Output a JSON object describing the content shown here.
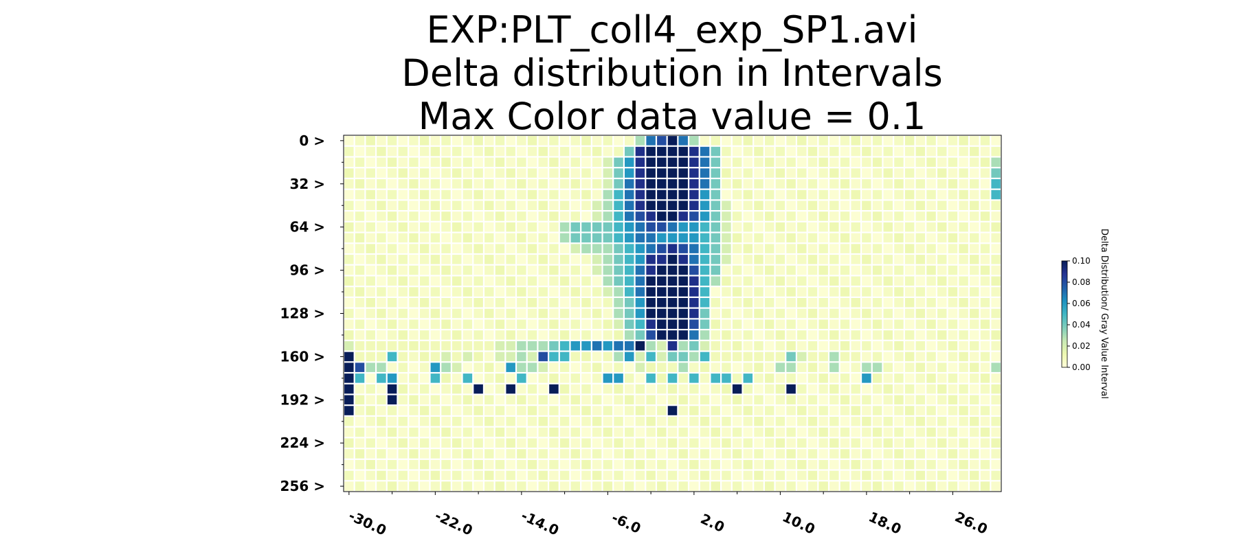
{
  "chart_data": {
    "type": "heatmap",
    "title_lines": [
      "EXP:PLT_coll4_exp_SP1.avi",
      "Delta distribution in Intervals",
      " Max Color data value = 0.1"
    ],
    "x_tick_labels": [
      "-30.0",
      "-22.0",
      "-14.0",
      "-6.0",
      "2.0",
      "10.0",
      "18.0",
      "26.0"
    ],
    "y_tick_labels": [
      "0 >",
      "32 >",
      "64 >",
      "96 >",
      "128 >",
      "160 >",
      "192 >",
      "224 >",
      "256 >"
    ],
    "x_range": [
      -30,
      30
    ],
    "y_range": [
      0,
      256
    ],
    "grid": false,
    "legend_position": "right",
    "colorbar": {
      "label": "Delta Distribution/ Gray Value Interval",
      "range": [
        0,
        0.1
      ],
      "tick_labels": [
        "0.00",
        "0.02",
        "0.04",
        "0.06",
        "0.08",
        "0.10"
      ],
      "colormap": [
        "#ffffd9",
        "#edf8b1",
        "#c7e9b4",
        "#7fcdbb",
        "#41b6c4",
        "#1d91c0",
        "#225ea8",
        "#253494",
        "#081d58"
      ]
    },
    "cells": [
      [
        -3,
        0,
        0.03
      ],
      [
        -2,
        0,
        0.07
      ],
      [
        -1,
        0,
        0.08
      ],
      [
        0,
        0,
        0.1
      ],
      [
        1,
        0,
        0.07
      ],
      [
        2,
        0,
        0.03
      ],
      [
        -4,
        1,
        0.04
      ],
      [
        -3,
        1,
        0.09
      ],
      [
        -2,
        1,
        0.1
      ],
      [
        -1,
        1,
        0.1
      ],
      [
        0,
        1,
        0.1
      ],
      [
        1,
        1,
        0.1
      ],
      [
        2,
        1,
        0.09
      ],
      [
        3,
        1,
        0.07
      ],
      [
        4,
        1,
        0.04
      ],
      [
        -6,
        2,
        0.02
      ],
      [
        -5,
        2,
        0.04
      ],
      [
        -4,
        2,
        0.06
      ],
      [
        -3,
        2,
        0.09
      ],
      [
        -2,
        2,
        0.1
      ],
      [
        -1,
        2,
        0.1
      ],
      [
        0,
        2,
        0.1
      ],
      [
        1,
        2,
        0.1
      ],
      [
        2,
        2,
        0.09
      ],
      [
        3,
        2,
        0.07
      ],
      [
        4,
        2,
        0.04
      ],
      [
        30,
        2,
        0.03
      ],
      [
        30,
        3,
        0.04
      ],
      [
        30,
        4,
        0.05
      ],
      [
        30,
        5,
        0.05
      ],
      [
        -6,
        3,
        0.02
      ],
      [
        -5,
        3,
        0.04
      ],
      [
        -4,
        3,
        0.06
      ],
      [
        -3,
        3,
        0.09
      ],
      [
        -2,
        3,
        0.1
      ],
      [
        -1,
        3,
        0.1
      ],
      [
        0,
        3,
        0.1
      ],
      [
        1,
        3,
        0.1
      ],
      [
        2,
        3,
        0.09
      ],
      [
        3,
        3,
        0.07
      ],
      [
        4,
        3,
        0.04
      ],
      [
        -6,
        4,
        0.02
      ],
      [
        -5,
        4,
        0.04
      ],
      [
        -4,
        4,
        0.07
      ],
      [
        -3,
        4,
        0.09
      ],
      [
        -2,
        4,
        0.1
      ],
      [
        -1,
        4,
        0.1
      ],
      [
        0,
        4,
        0.1
      ],
      [
        1,
        4,
        0.1
      ],
      [
        2,
        4,
        0.09
      ],
      [
        3,
        4,
        0.07
      ],
      [
        4,
        4,
        0.04
      ],
      [
        -6,
        5,
        0.03
      ],
      [
        -5,
        5,
        0.05
      ],
      [
        -4,
        5,
        0.07
      ],
      [
        -3,
        5,
        0.09
      ],
      [
        -2,
        5,
        0.1
      ],
      [
        -1,
        5,
        0.1
      ],
      [
        0,
        5,
        0.1
      ],
      [
        1,
        5,
        0.1
      ],
      [
        2,
        5,
        0.09
      ],
      [
        3,
        5,
        0.06
      ],
      [
        4,
        5,
        0.04
      ],
      [
        -7,
        6,
        0.02
      ],
      [
        -6,
        6,
        0.03
      ],
      [
        -5,
        6,
        0.05
      ],
      [
        -4,
        6,
        0.07
      ],
      [
        -3,
        6,
        0.09
      ],
      [
        -2,
        6,
        0.1
      ],
      [
        -1,
        6,
        0.1
      ],
      [
        0,
        6,
        0.1
      ],
      [
        1,
        6,
        0.1
      ],
      [
        2,
        6,
        0.09
      ],
      [
        3,
        6,
        0.06
      ],
      [
        4,
        6,
        0.04
      ],
      [
        5,
        6,
        0.02
      ],
      [
        -7,
        7,
        0.02
      ],
      [
        -6,
        7,
        0.03
      ],
      [
        -5,
        7,
        0.05
      ],
      [
        -4,
        7,
        0.07
      ],
      [
        -3,
        7,
        0.08
      ],
      [
        -2,
        7,
        0.09
      ],
      [
        -1,
        7,
        0.1
      ],
      [
        0,
        7,
        0.1
      ],
      [
        1,
        7,
        0.09
      ],
      [
        2,
        7,
        0.08
      ],
      [
        3,
        7,
        0.06
      ],
      [
        4,
        7,
        0.04
      ],
      [
        5,
        7,
        0.02
      ],
      [
        -10,
        8,
        0.03
      ],
      [
        -9,
        8,
        0.04
      ],
      [
        -8,
        8,
        0.04
      ],
      [
        -7,
        8,
        0.04
      ],
      [
        -6,
        8,
        0.04
      ],
      [
        -5,
        8,
        0.05
      ],
      [
        -4,
        8,
        0.06
      ],
      [
        -3,
        8,
        0.07
      ],
      [
        -2,
        8,
        0.08
      ],
      [
        -1,
        8,
        0.08
      ],
      [
        0,
        8,
        0.07
      ],
      [
        1,
        8,
        0.06
      ],
      [
        2,
        8,
        0.06
      ],
      [
        3,
        8,
        0.05
      ],
      [
        4,
        8,
        0.04
      ],
      [
        5,
        8,
        0.02
      ],
      [
        -10,
        9,
        0.03
      ],
      [
        -9,
        9,
        0.04
      ],
      [
        -8,
        9,
        0.04
      ],
      [
        -7,
        9,
        0.04
      ],
      [
        -6,
        9,
        0.04
      ],
      [
        -5,
        9,
        0.05
      ],
      [
        -4,
        9,
        0.06
      ],
      [
        -3,
        9,
        0.07
      ],
      [
        -2,
        9,
        0.07
      ],
      [
        -1,
        9,
        0.06
      ],
      [
        0,
        9,
        0.06
      ],
      [
        1,
        9,
        0.06
      ],
      [
        2,
        9,
        0.06
      ],
      [
        3,
        9,
        0.05
      ],
      [
        4,
        9,
        0.04
      ],
      [
        5,
        9,
        0.02
      ],
      [
        -9,
        10,
        0.02
      ],
      [
        -8,
        10,
        0.03
      ],
      [
        -7,
        10,
        0.03
      ],
      [
        -6,
        10,
        0.03
      ],
      [
        -5,
        10,
        0.04
      ],
      [
        -4,
        10,
        0.05
      ],
      [
        -3,
        10,
        0.06
      ],
      [
        -2,
        10,
        0.07
      ],
      [
        -1,
        10,
        0.08
      ],
      [
        0,
        10,
        0.09
      ],
      [
        1,
        10,
        0.08
      ],
      [
        2,
        10,
        0.07
      ],
      [
        3,
        10,
        0.05
      ],
      [
        4,
        10,
        0.04
      ],
      [
        5,
        10,
        0.02
      ],
      [
        -7,
        11,
        0.02
      ],
      [
        -6,
        11,
        0.03
      ],
      [
        -5,
        11,
        0.04
      ],
      [
        -4,
        11,
        0.05
      ],
      [
        -3,
        11,
        0.06
      ],
      [
        -2,
        11,
        0.09
      ],
      [
        -1,
        11,
        0.09
      ],
      [
        0,
        11,
        0.1
      ],
      [
        1,
        11,
        0.09
      ],
      [
        2,
        11,
        0.07
      ],
      [
        3,
        11,
        0.05
      ],
      [
        4,
        11,
        0.04
      ],
      [
        5,
        11,
        0.02
      ],
      [
        -7,
        12,
        0.02
      ],
      [
        -6,
        12,
        0.03
      ],
      [
        -5,
        12,
        0.04
      ],
      [
        -4,
        12,
        0.05
      ],
      [
        -3,
        12,
        0.07
      ],
      [
        -2,
        12,
        0.09
      ],
      [
        -1,
        12,
        0.1
      ],
      [
        0,
        12,
        0.1
      ],
      [
        1,
        12,
        0.1
      ],
      [
        2,
        12,
        0.08
      ],
      [
        3,
        12,
        0.05
      ],
      [
        4,
        12,
        0.04
      ],
      [
        -6,
        13,
        0.03
      ],
      [
        -5,
        13,
        0.04
      ],
      [
        -4,
        13,
        0.05
      ],
      [
        -3,
        13,
        0.07
      ],
      [
        -2,
        13,
        0.1
      ],
      [
        -1,
        13,
        0.1
      ],
      [
        0,
        13,
        0.1
      ],
      [
        1,
        13,
        0.1
      ],
      [
        2,
        13,
        0.09
      ],
      [
        3,
        13,
        0.05
      ],
      [
        4,
        13,
        0.03
      ],
      [
        -6,
        14,
        0.02
      ],
      [
        -5,
        14,
        0.03
      ],
      [
        -4,
        14,
        0.05
      ],
      [
        -3,
        14,
        0.07
      ],
      [
        -2,
        14,
        0.1
      ],
      [
        -1,
        14,
        0.1
      ],
      [
        0,
        14,
        0.1
      ],
      [
        1,
        14,
        0.1
      ],
      [
        2,
        14,
        0.09
      ],
      [
        3,
        14,
        0.05
      ],
      [
        -5,
        15,
        0.03
      ],
      [
        -4,
        15,
        0.04
      ],
      [
        -3,
        15,
        0.06
      ],
      [
        -2,
        15,
        0.1
      ],
      [
        -1,
        15,
        0.1
      ],
      [
        0,
        15,
        0.1
      ],
      [
        1,
        15,
        0.1
      ],
      [
        2,
        15,
        0.09
      ],
      [
        3,
        15,
        0.05
      ],
      [
        -5,
        16,
        0.03
      ],
      [
        -4,
        16,
        0.04
      ],
      [
        -3,
        16,
        0.06
      ],
      [
        -2,
        16,
        0.1
      ],
      [
        -1,
        16,
        0.1
      ],
      [
        0,
        16,
        0.1
      ],
      [
        1,
        16,
        0.1
      ],
      [
        2,
        16,
        0.09
      ],
      [
        3,
        16,
        0.04
      ],
      [
        -5,
        17,
        0.02
      ],
      [
        -4,
        17,
        0.04
      ],
      [
        -3,
        17,
        0.05
      ],
      [
        -2,
        17,
        0.09
      ],
      [
        -1,
        17,
        0.1
      ],
      [
        0,
        17,
        0.1
      ],
      [
        1,
        17,
        0.1
      ],
      [
        2,
        17,
        0.08
      ],
      [
        3,
        17,
        0.04
      ],
      [
        -4,
        18,
        0.03
      ],
      [
        -3,
        18,
        0.04
      ],
      [
        -2,
        18,
        0.08
      ],
      [
        -1,
        18,
        0.1
      ],
      [
        0,
        18,
        0.1
      ],
      [
        1,
        18,
        0.1
      ],
      [
        2,
        18,
        0.07
      ],
      [
        3,
        18,
        0.03
      ],
      [
        -30,
        19,
        0.02
      ],
      [
        -29,
        19,
        0.01
      ],
      [
        -28,
        19,
        0.01
      ],
      [
        -27,
        19,
        0.01
      ],
      [
        -26,
        19,
        0.01
      ],
      [
        -25,
        19,
        0.01
      ],
      [
        -23,
        19,
        0.01
      ],
      [
        -22,
        19,
        0.01
      ],
      [
        -21,
        19,
        0.01
      ],
      [
        -20,
        19,
        0.01
      ],
      [
        -19,
        19,
        0.01
      ],
      [
        -18,
        19,
        0.01
      ],
      [
        -17,
        19,
        0.01
      ],
      [
        -16,
        19,
        0.02
      ],
      [
        -15,
        19,
        0.01
      ],
      [
        -14,
        19,
        0.01
      ],
      [
        -13,
        19,
        0.01
      ],
      [
        -16,
        19,
        0.02
      ],
      [
        -15,
        19,
        0.02
      ],
      [
        -14,
        19,
        0.03
      ],
      [
        -13,
        19,
        0.03
      ],
      [
        -12,
        19,
        0.03
      ],
      [
        -11,
        19,
        0.04
      ],
      [
        -10,
        19,
        0.05
      ],
      [
        -9,
        19,
        0.06
      ],
      [
        -8,
        19,
        0.06
      ],
      [
        -7,
        19,
        0.07
      ],
      [
        -6,
        19,
        0.06
      ],
      [
        -5,
        19,
        0.07
      ],
      [
        -4,
        19,
        0.07
      ],
      [
        -3,
        19,
        0.1
      ],
      [
        -2,
        19,
        0.03
      ],
      [
        -1,
        19,
        0.02
      ],
      [
        0,
        19,
        0.09
      ],
      [
        1,
        19,
        0.03
      ],
      [
        2,
        19,
        0.04
      ],
      [
        3,
        19,
        0.02
      ],
      [
        4,
        19,
        0.01
      ],
      [
        -30,
        20,
        0.1
      ],
      [
        -29,
        20,
        0.01
      ],
      [
        -28,
        20,
        0.01
      ],
      [
        -27,
        20,
        0.01
      ],
      [
        -26,
        20,
        0.05
      ],
      [
        -25,
        20,
        0.01
      ],
      [
        -22,
        20,
        0.01
      ],
      [
        -21,
        20,
        0.02
      ],
      [
        -20,
        20,
        0.01
      ],
      [
        -19,
        20,
        0.02
      ],
      [
        -16,
        20,
        0.02
      ],
      [
        -15,
        20,
        0.02
      ],
      [
        -14,
        20,
        0.03
      ],
      [
        -13,
        20,
        0.02
      ],
      [
        -12,
        20,
        0.08
      ],
      [
        -11,
        20,
        0.05
      ],
      [
        -10,
        20,
        0.05
      ],
      [
        -9,
        20,
        0.01
      ],
      [
        -6,
        20,
        0.01
      ],
      [
        -5,
        20,
        0.03
      ],
      [
        -4,
        20,
        0.06
      ],
      [
        -3,
        20,
        0.02
      ],
      [
        -2,
        20,
        0.05
      ],
      [
        -1,
        20,
        0.02
      ],
      [
        0,
        20,
        0.04
      ],
      [
        1,
        20,
        0.04
      ],
      [
        2,
        20,
        0.03
      ],
      [
        3,
        20,
        0.05
      ],
      [
        4,
        20,
        0.01
      ],
      [
        5,
        20,
        0.01
      ],
      [
        6,
        20,
        0.01
      ],
      [
        7,
        20,
        0.01
      ],
      [
        8,
        20,
        0.01
      ],
      [
        9,
        20,
        0.01
      ],
      [
        10,
        20,
        0.01
      ],
      [
        11,
        20,
        0.04
      ],
      [
        12,
        20,
        0.02
      ],
      [
        13,
        20,
        0.01
      ],
      [
        14,
        20,
        0.01
      ],
      [
        15,
        20,
        0.03
      ],
      [
        16,
        20,
        0.01
      ],
      [
        17,
        20,
        0.01
      ],
      [
        -30,
        21,
        0.1
      ],
      [
        -29,
        21,
        0.08
      ],
      [
        -28,
        21,
        0.03
      ],
      [
        -27,
        21,
        0.03
      ],
      [
        -22,
        21,
        0.06
      ],
      [
        -21,
        21,
        0.03
      ],
      [
        -20,
        21,
        0.02
      ],
      [
        -15,
        21,
        0.06
      ],
      [
        -14,
        21,
        0.03
      ],
      [
        -13,
        21,
        0.03
      ],
      [
        -12,
        21,
        0.02
      ],
      [
        -3,
        21,
        0.02
      ],
      [
        -1,
        21,
        0.01
      ],
      [
        1,
        21,
        0.03
      ],
      [
        10,
        21,
        0.03
      ],
      [
        11,
        21,
        0.03
      ],
      [
        15,
        21,
        0.03
      ],
      [
        18,
        21,
        0.03
      ],
      [
        19,
        21,
        0.03
      ],
      [
        30,
        21,
        0.03
      ],
      [
        -30,
        22,
        0.1
      ],
      [
        -29,
        22,
        0.05
      ],
      [
        -27,
        22,
        0.05
      ],
      [
        -26,
        22,
        0.06
      ],
      [
        -22,
        22,
        0.05
      ],
      [
        -19,
        22,
        0.05
      ],
      [
        -14,
        22,
        0.05
      ],
      [
        -6,
        22,
        0.06
      ],
      [
        -5,
        22,
        0.06
      ],
      [
        -2,
        22,
        0.05
      ],
      [
        0,
        22,
        0.05
      ],
      [
        2,
        22,
        0.05
      ],
      [
        4,
        22,
        0.05
      ],
      [
        5,
        22,
        0.05
      ],
      [
        7,
        22,
        0.05
      ],
      [
        18,
        22,
        0.06
      ],
      [
        -30,
        23,
        0.1
      ],
      [
        -26,
        23,
        0.1
      ],
      [
        -18,
        23,
        0.1
      ],
      [
        -15,
        23,
        0.1
      ],
      [
        -11,
        23,
        0.1
      ],
      [
        6,
        23,
        0.1
      ],
      [
        11,
        23,
        0.1
      ],
      [
        -30,
        24,
        0.1
      ],
      [
        -26,
        24,
        0.1
      ],
      [
        -30,
        25,
        0.1
      ],
      [
        0,
        25,
        0.1
      ]
    ]
  }
}
